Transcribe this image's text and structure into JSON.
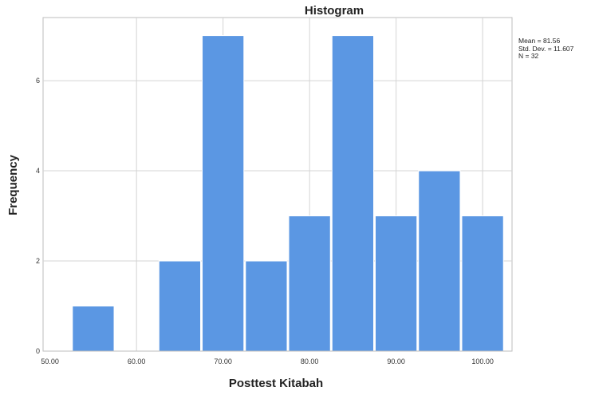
{
  "chart_data": {
    "type": "bar",
    "title": "Histogram",
    "xlabel": "Posttest Kitabah",
    "ylabel": "Frequency",
    "x_ticks": [
      "50.00",
      "60.00",
      "70.00",
      "80.00",
      "90.00",
      "100.00"
    ],
    "x_tick_values": [
      50,
      60,
      70,
      80,
      90,
      100
    ],
    "y_ticks": [
      "0",
      "2",
      "4",
      "6"
    ],
    "y_tick_values": [
      0,
      2,
      4,
      6
    ],
    "xlim": [
      49.2,
      103.4
    ],
    "ylim": [
      0,
      7.4
    ],
    "bins": [
      {
        "start": 52.5,
        "end": 57.5,
        "value": 1
      },
      {
        "start": 62.5,
        "end": 67.5,
        "value": 2
      },
      {
        "start": 67.5,
        "end": 72.5,
        "value": 7
      },
      {
        "start": 72.5,
        "end": 77.5,
        "value": 2
      },
      {
        "start": 77.5,
        "end": 82.5,
        "value": 3
      },
      {
        "start": 82.5,
        "end": 87.5,
        "value": 7
      },
      {
        "start": 87.5,
        "end": 92.5,
        "value": 3
      },
      {
        "start": 92.5,
        "end": 97.5,
        "value": 4
      },
      {
        "start": 97.5,
        "end": 102.5,
        "value": 3
      }
    ],
    "bar_color": "#5b97e3",
    "grid": true,
    "stats": {
      "mean": "Mean = 81.56",
      "std": "Std. Dev. = 11.607",
      "n": "N = 32"
    }
  }
}
